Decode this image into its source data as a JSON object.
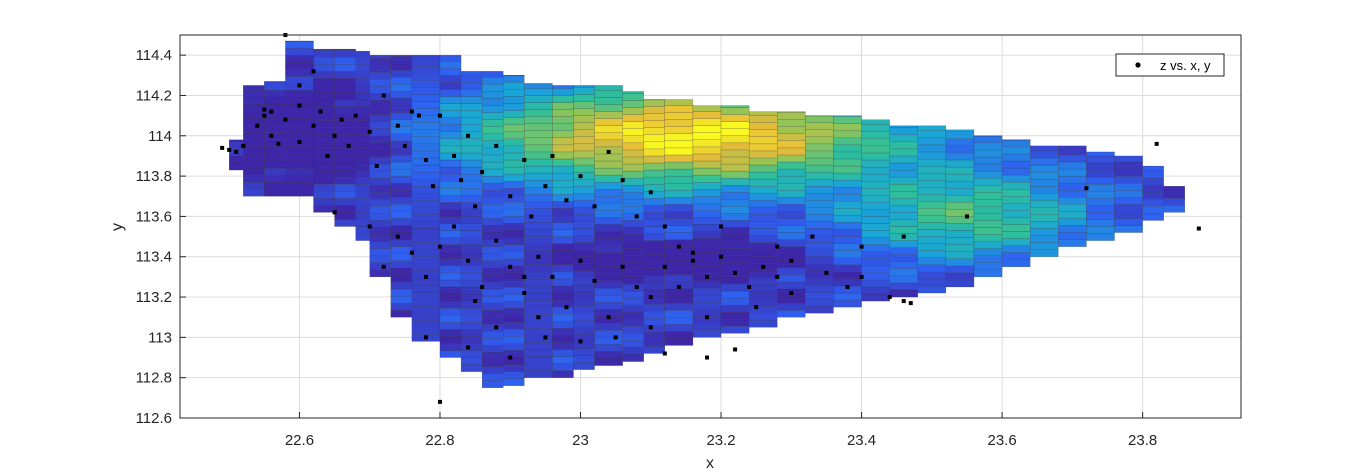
{
  "chart_data": {
    "type": "surface-fit-scatter",
    "title": "",
    "xlabel": "x",
    "ylabel": "y",
    "xlim": [
      22.43,
      23.94
    ],
    "ylim": [
      112.6,
      114.5
    ],
    "xticks": [
      22.6,
      22.8,
      23,
      23.2,
      23.4,
      23.6,
      23.8
    ],
    "xtick_labels": [
      "22.6",
      "22.8",
      "23",
      "23.2",
      "23.4",
      "23.6",
      "23.8"
    ],
    "yticks": [
      112.6,
      112.8,
      113,
      113.2,
      113.4,
      113.6,
      113.8,
      114,
      114.2,
      114.4
    ],
    "ytick_labels": [
      "112.6",
      "112.8",
      "113",
      "113.2",
      "113.4",
      "113.6",
      "113.8",
      "114",
      "114.2",
      "114.4"
    ],
    "grid": true,
    "legend": {
      "position": "top-right",
      "entries": [
        "z vs. x, y"
      ]
    },
    "colormap": [
      "#3e26a8",
      "#2f60f0",
      "#1aa5d8",
      "#2ebf9a",
      "#8cc55a",
      "#e6bb3a",
      "#f9f920"
    ],
    "surface": {
      "x_columns": [
        [
          22.5,
          113.83,
          113.98
        ],
        [
          22.52,
          113.7,
          114.25
        ],
        [
          22.55,
          113.7,
          114.27
        ],
        [
          22.58,
          113.7,
          114.47
        ],
        [
          22.62,
          113.62,
          114.43
        ],
        [
          22.65,
          113.55,
          114.43
        ],
        [
          22.68,
          113.48,
          114.42
        ],
        [
          22.7,
          113.3,
          114.4
        ],
        [
          22.73,
          113.1,
          114.4
        ],
        [
          22.76,
          112.98,
          114.4
        ],
        [
          22.8,
          112.9,
          114.4
        ],
        [
          22.83,
          112.83,
          114.32
        ],
        [
          22.86,
          112.75,
          114.32
        ],
        [
          22.89,
          112.76,
          114.3
        ],
        [
          22.92,
          112.8,
          114.26
        ],
        [
          22.96,
          112.8,
          114.25
        ],
        [
          22.99,
          112.84,
          114.25
        ],
        [
          23.02,
          112.86,
          114.25
        ],
        [
          23.06,
          112.88,
          114.22
        ],
        [
          23.09,
          112.92,
          114.18
        ],
        [
          23.12,
          112.96,
          114.18
        ],
        [
          23.16,
          113.0,
          114.15
        ],
        [
          23.2,
          113.02,
          114.15
        ],
        [
          23.24,
          113.05,
          114.12
        ],
        [
          23.28,
          113.1,
          114.12
        ],
        [
          23.32,
          113.12,
          114.1
        ],
        [
          23.36,
          113.15,
          114.1
        ],
        [
          23.4,
          113.18,
          114.08
        ],
        [
          23.44,
          113.2,
          114.05
        ],
        [
          23.48,
          113.22,
          114.05
        ],
        [
          23.52,
          113.25,
          114.03
        ],
        [
          23.56,
          113.3,
          114.0
        ],
        [
          23.6,
          113.35,
          113.98
        ],
        [
          23.64,
          113.4,
          113.95
        ],
        [
          23.68,
          113.45,
          113.95
        ],
        [
          23.72,
          113.48,
          113.92
        ],
        [
          23.76,
          113.52,
          113.9
        ],
        [
          23.8,
          113.58,
          113.85
        ],
        [
          23.83,
          113.62,
          113.75
        ]
      ],
      "value_model": "0.08 + 0.92*exp(-((x-23.15)^2/0.085 + (y-114.0)^2/0.06)) + 0.45*exp(-((x-23.55)^2/0.03 + (y-113.6)^2/0.05)) - 0.35*exp(-((x-22.62)^2/0.01 + (y-114.0)^2/0.04)) - 0.35*exp(-((x-23.15)^2/0.02 + (y-113.38)^2/0.006))"
    },
    "scatter_points": [
      [
        22.49,
        113.94
      ],
      [
        22.5,
        113.93
      ],
      [
        22.51,
        113.92
      ],
      [
        22.52,
        113.95
      ],
      [
        22.54,
        114.05
      ],
      [
        22.55,
        114.1
      ],
      [
        22.56,
        114.0
      ],
      [
        22.56,
        114.12
      ],
      [
        22.57,
        113.96
      ],
      [
        22.58,
        114.08
      ],
      [
        22.58,
        114.5
      ],
      [
        22.6,
        113.97
      ],
      [
        22.6,
        114.15
      ],
      [
        22.62,
        114.05
      ],
      [
        22.63,
        114.12
      ],
      [
        22.64,
        113.9
      ],
      [
        22.65,
        114.0
      ],
      [
        22.66,
        114.08
      ],
      [
        22.67,
        113.95
      ],
      [
        22.68,
        114.1
      ],
      [
        22.7,
        114.02
      ],
      [
        22.71,
        113.85
      ],
      [
        22.72,
        114.2
      ],
      [
        22.74,
        114.05
      ],
      [
        22.75,
        113.95
      ],
      [
        22.76,
        114.12
      ],
      [
        22.78,
        113.88
      ],
      [
        22.79,
        113.75
      ],
      [
        22.8,
        114.1
      ],
      [
        22.82,
        113.9
      ],
      [
        22.83,
        113.78
      ],
      [
        22.84,
        114.0
      ],
      [
        22.85,
        113.65
      ],
      [
        22.86,
        113.82
      ],
      [
        22.88,
        113.95
      ],
      [
        22.9,
        113.7
      ],
      [
        22.92,
        113.88
      ],
      [
        22.93,
        113.6
      ],
      [
        22.95,
        113.75
      ],
      [
        22.96,
        113.9
      ],
      [
        22.98,
        113.68
      ],
      [
        23.0,
        113.8
      ],
      [
        23.02,
        113.65
      ],
      [
        23.04,
        113.92
      ],
      [
        23.06,
        113.78
      ],
      [
        23.08,
        113.6
      ],
      [
        23.1,
        113.72
      ],
      [
        23.12,
        113.55
      ],
      [
        23.14,
        113.45
      ],
      [
        22.7,
        113.55
      ],
      [
        22.72,
        113.35
      ],
      [
        22.74,
        113.5
      ],
      [
        22.76,
        113.42
      ],
      [
        22.78,
        113.3
      ],
      [
        22.8,
        113.45
      ],
      [
        22.82,
        113.55
      ],
      [
        22.84,
        113.38
      ],
      [
        22.86,
        113.25
      ],
      [
        22.88,
        113.48
      ],
      [
        22.9,
        113.35
      ],
      [
        22.92,
        113.22
      ],
      [
        22.94,
        113.4
      ],
      [
        22.96,
        113.3
      ],
      [
        22.98,
        113.15
      ],
      [
        23.0,
        113.38
      ],
      [
        23.02,
        113.28
      ],
      [
        23.04,
        113.1
      ],
      [
        23.06,
        113.35
      ],
      [
        23.08,
        113.25
      ],
      [
        23.1,
        113.2
      ],
      [
        23.12,
        113.35
      ],
      [
        23.14,
        113.25
      ],
      [
        23.16,
        113.38
      ],
      [
        23.18,
        113.3
      ],
      [
        23.2,
        113.4
      ],
      [
        23.22,
        113.32
      ],
      [
        23.24,
        113.25
      ],
      [
        23.26,
        113.35
      ],
      [
        23.28,
        113.3
      ],
      [
        23.3,
        113.38
      ],
      [
        23.35,
        113.32
      ],
      [
        23.38,
        113.25
      ],
      [
        23.4,
        113.3
      ],
      [
        23.44,
        113.2
      ],
      [
        23.46,
        113.18
      ],
      [
        23.47,
        113.17
      ],
      [
        23.3,
        113.22
      ],
      [
        23.25,
        113.15
      ],
      [
        23.18,
        113.1
      ],
      [
        23.1,
        113.05
      ],
      [
        23.05,
        113.0
      ],
      [
        22.95,
        113.0
      ],
      [
        22.9,
        112.9
      ],
      [
        22.84,
        112.95
      ],
      [
        22.78,
        113.0
      ],
      [
        22.8,
        112.68
      ],
      [
        23.12,
        112.92
      ],
      [
        23.18,
        112.9
      ],
      [
        23.22,
        112.94
      ],
      [
        23.0,
        112.98
      ],
      [
        23.46,
        113.5
      ],
      [
        23.55,
        113.6
      ],
      [
        23.72,
        113.74
      ],
      [
        23.82,
        113.96
      ],
      [
        23.88,
        113.54
      ],
      [
        22.65,
        113.62
      ],
      [
        22.6,
        114.25
      ],
      [
        22.55,
        114.13
      ],
      [
        22.62,
        114.32
      ],
      [
        22.77,
        114.1
      ],
      [
        22.85,
        113.18
      ],
      [
        22.88,
        113.05
      ],
      [
        22.92,
        113.3
      ],
      [
        22.94,
        113.1
      ],
      [
        23.16,
        113.42
      ],
      [
        23.2,
        113.55
      ],
      [
        23.28,
        113.45
      ],
      [
        23.33,
        113.5
      ],
      [
        23.4,
        113.45
      ]
    ]
  }
}
